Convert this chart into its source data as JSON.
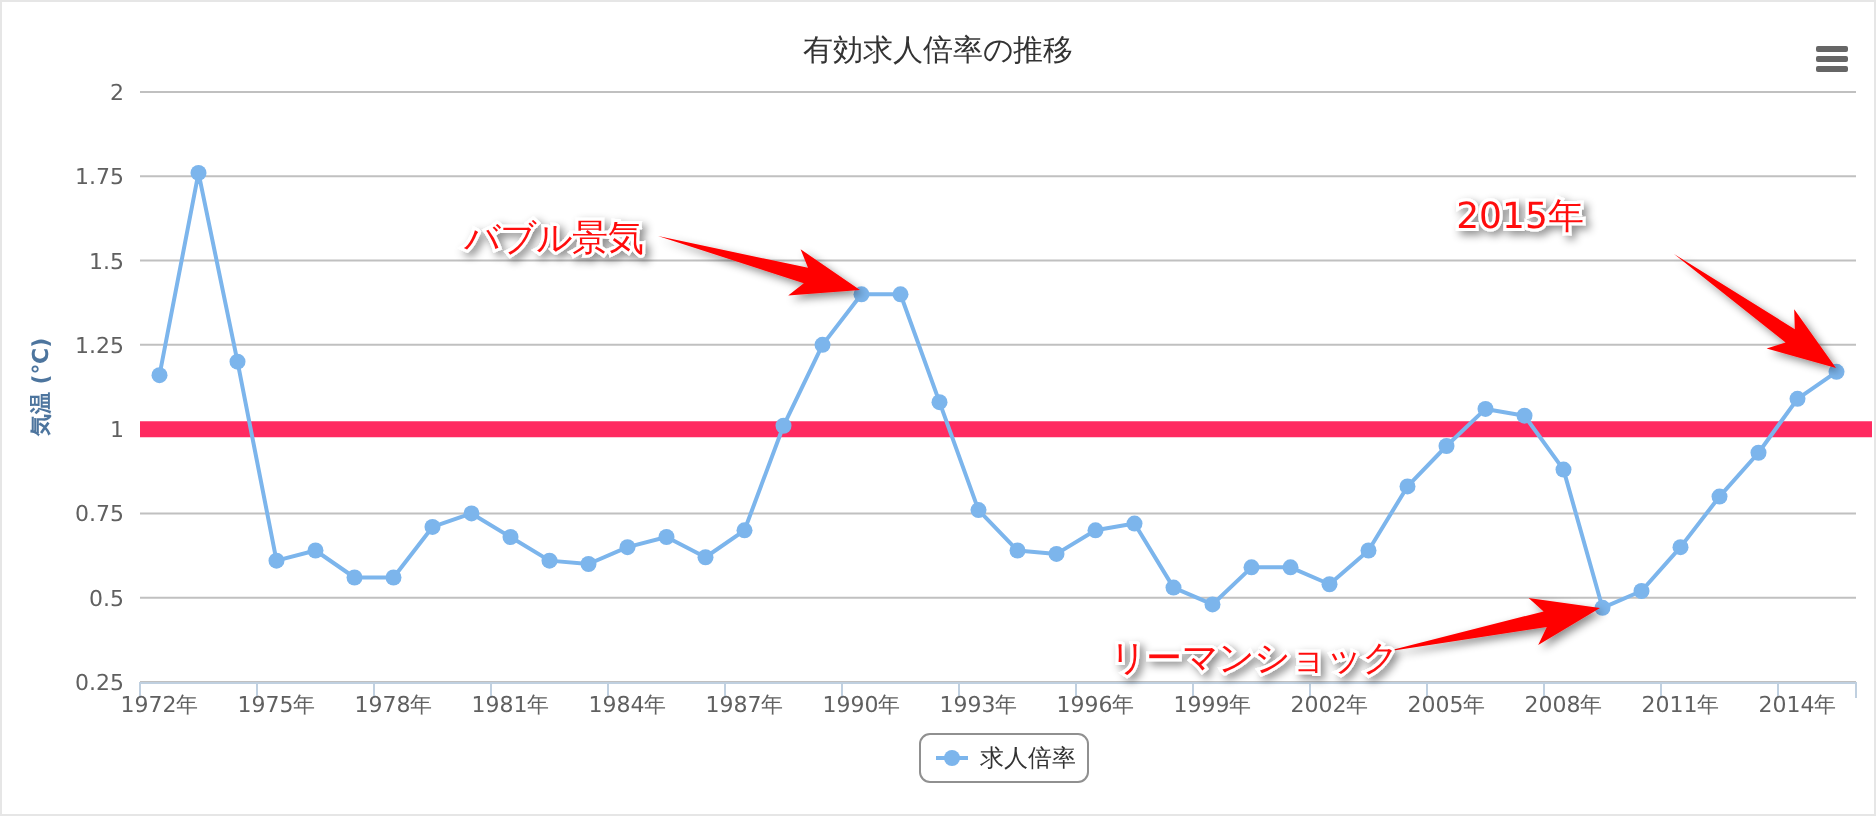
{
  "chart_data": {
    "type": "line",
    "title": "有効求人倍率の推移",
    "ylabel": "気温 (℃)",
    "categories": [
      "1972年",
      null,
      null,
      "1975年",
      null,
      null,
      "1978年",
      null,
      null,
      "1981年",
      null,
      null,
      "1984年",
      null,
      null,
      "1987年",
      null,
      null,
      "1990年",
      null,
      null,
      "1993年",
      null,
      null,
      "1996年",
      null,
      null,
      "1999年",
      null,
      null,
      "2002年",
      null,
      null,
      "2005年",
      null,
      null,
      "2008年",
      null,
      null,
      "2011年",
      null,
      null,
      "2014年",
      null
    ],
    "series": [
      {
        "name": "求人倍率",
        "color": "#7cb5ec",
        "values": [
          1.16,
          1.76,
          1.2,
          0.61,
          0.64,
          0.56,
          0.56,
          0.71,
          0.75,
          0.68,
          0.61,
          0.6,
          0.65,
          0.68,
          0.62,
          0.7,
          1.01,
          1.25,
          1.4,
          1.4,
          1.08,
          0.76,
          0.64,
          0.63,
          0.7,
          0.72,
          0.53,
          0.48,
          0.59,
          0.59,
          0.54,
          0.64,
          0.83,
          0.95,
          1.06,
          1.04,
          0.88,
          0.47,
          0.52,
          0.65,
          0.8,
          0.93,
          1.09,
          1.17
        ]
      }
    ],
    "ylim": [
      0.25,
      2
    ],
    "yticks": [
      0.25,
      0.5,
      0.75,
      1,
      1.25,
      1.5,
      1.75,
      2
    ],
    "grid": "y",
    "legend": "bottom",
    "marker": "circle",
    "line_style": "solid",
    "ref_lines": [
      {
        "axis": "y",
        "value": 1,
        "color": "#ff2a60"
      }
    ],
    "annotations": [
      "バブル景気",
      "リーマンショック",
      "2015年"
    ]
  }
}
